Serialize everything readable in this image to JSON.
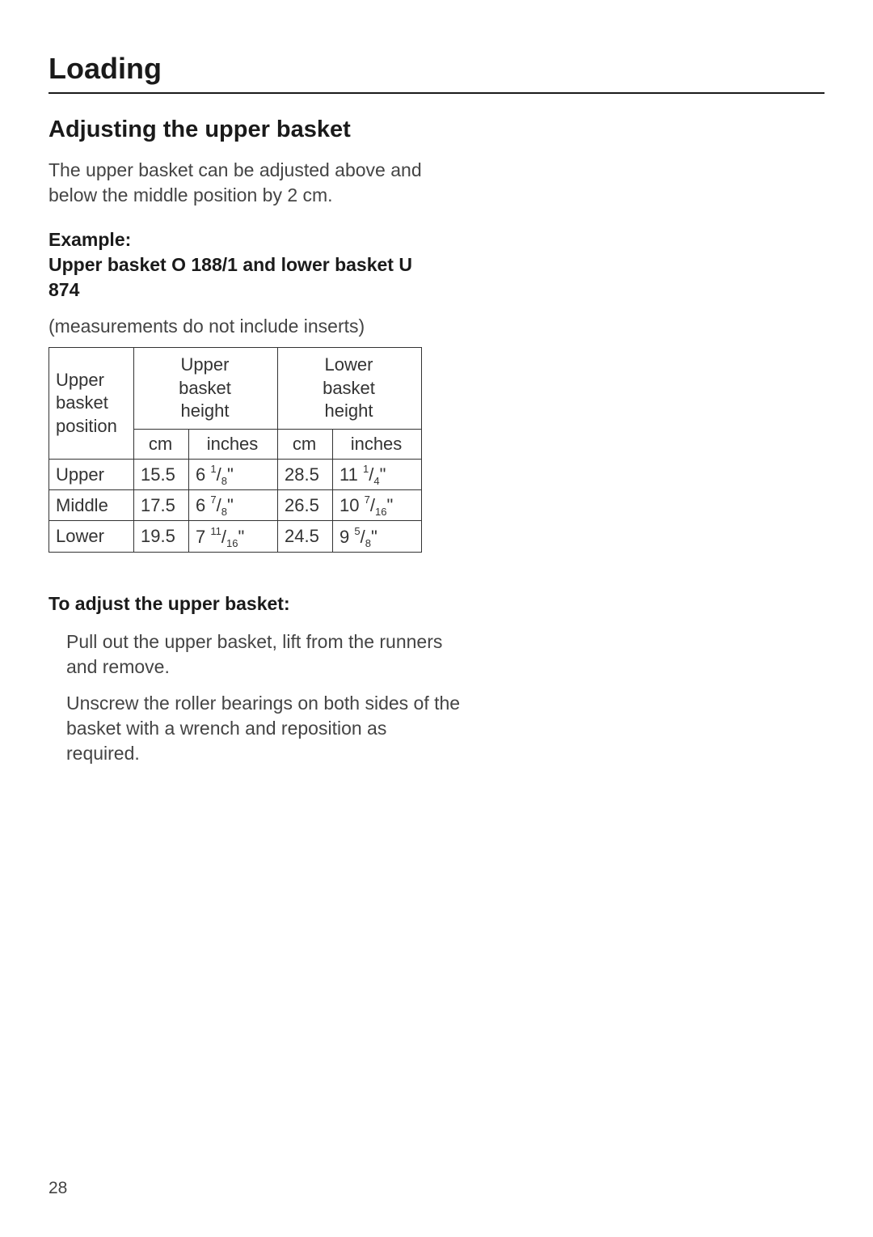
{
  "section_title": "Loading",
  "subsection_title": "Adjusting the upper basket",
  "intro_text": "The upper basket can be adjusted above and below the middle position by 2 cm.",
  "example": {
    "label_line1": "Example:",
    "label_line2": "Upper basket O 188/1 and lower basket U 874"
  },
  "note": "(measurements do not include inserts)",
  "table": {
    "header_position": "Upper basket position",
    "header_upper": "Upper basket height",
    "header_lower": "Lower basket height",
    "sub_cm": "cm",
    "sub_inches": "inches",
    "rows": [
      {
        "label": "Upper",
        "upper_cm": "15.5",
        "upper_in_whole": "6",
        "upper_in_num": "1",
        "upper_in_den": "8",
        "lower_cm": "28.5",
        "lower_in_whole": "11",
        "lower_in_num": "1",
        "lower_in_den": "4"
      },
      {
        "label": "Middle",
        "upper_cm": "17.5",
        "upper_in_whole": "6",
        "upper_in_num": "7",
        "upper_in_den": "8",
        "lower_cm": "26.5",
        "lower_in_whole": "10",
        "lower_in_num": "7",
        "lower_in_den": "16"
      },
      {
        "label": "Lower",
        "upper_cm": "19.5",
        "upper_in_whole": "7",
        "upper_in_num": "11",
        "upper_in_den": "16",
        "lower_cm": "24.5",
        "lower_in_whole": "9",
        "lower_in_num": "5",
        "lower_in_den": "8"
      }
    ]
  },
  "adjust_title": "To adjust the upper basket:",
  "steps": [
    "Pull out the upper basket, lift from the runners and remove.",
    "Unscrew the roller bearings on both sides of the basket with a wrench and reposition as required."
  ],
  "page_number": "28"
}
